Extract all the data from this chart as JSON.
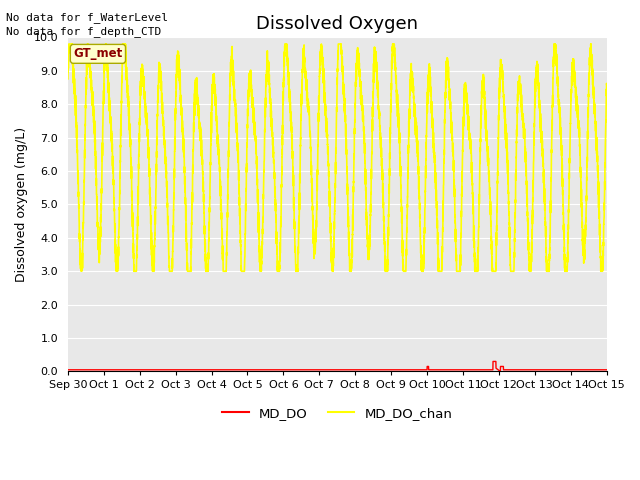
{
  "title": "Dissolved Oxygen",
  "ylabel": "Dissolved oxygen (mg/L)",
  "note1": "No data for f_WaterLevel",
  "note2": "No data for f_depth_CTD",
  "legend_box_label": "GT_met",
  "ylim": [
    0.0,
    10.0
  ],
  "yticks": [
    0.0,
    1.0,
    2.0,
    3.0,
    4.0,
    5.0,
    6.0,
    7.0,
    8.0,
    9.0,
    10.0
  ],
  "xtick_labels": [
    "Sep 30",
    "Oct 1",
    "Oct 2",
    "Oct 3",
    "Oct 4",
    "Oct 5",
    "Oct 6",
    "Oct 7",
    "Oct 8",
    "Oct 9",
    "Oct 10",
    "Oct 11",
    "Oct 12",
    "Oct 13",
    "Oct 14",
    "Oct 15"
  ],
  "background_color": "#e8e8e8",
  "figure_background": "#ffffff",
  "grid_color": "#ffffff",
  "legend_md_do_color": "#ff0000",
  "legend_md_do_chan_color": "#ffff00",
  "md_do_chan_color": "#ffff00",
  "md_do_color": "#ff0000",
  "md_do_chan_linewidth": 1.2,
  "md_do_linewidth": 1.0,
  "title_fontsize": 13,
  "axis_label_fontsize": 9,
  "tick_fontsize": 8,
  "note_fontsize": 8
}
